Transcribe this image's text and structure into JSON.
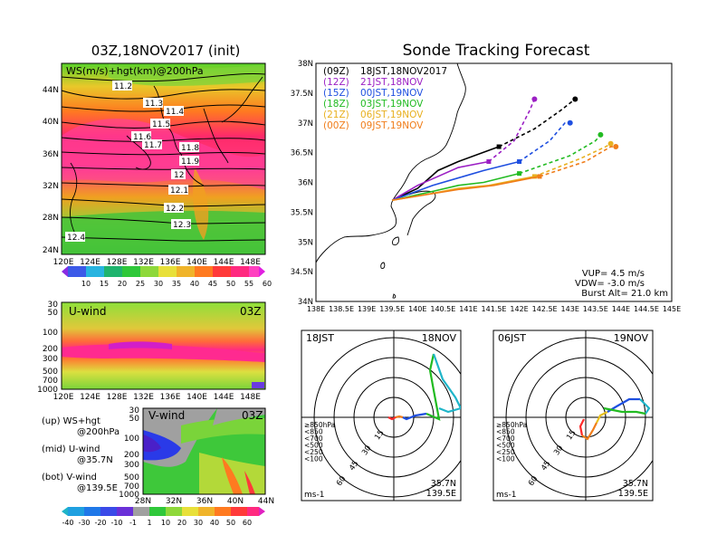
{
  "left_title": "03Z,18NOV2017 (init)",
  "right_title": "Sonde Tracking Forecast",
  "map_panel": {
    "label": "WS(m/s)+hgt(km)@200hPa",
    "xticks": [
      "120E",
      "124E",
      "128E",
      "132E",
      "136E",
      "140E",
      "144E",
      "148E"
    ],
    "yticks": [
      "24N",
      "28N",
      "32N",
      "36N",
      "40N",
      "44N"
    ],
    "contours": [
      "11.2",
      "11.3",
      "11.4",
      "11.5",
      "11.6",
      "11.7",
      "11.8",
      "11.9",
      "12",
      "12.1",
      "12.2",
      "12.3",
      "12.4"
    ],
    "colorbar": [
      "10",
      "15",
      "20",
      "25",
      "30",
      "35",
      "40",
      "45",
      "50",
      "55",
      "60"
    ]
  },
  "uwind_panel": {
    "label": "U-wind",
    "time": "03Z",
    "yticks": [
      "30",
      "50",
      "100",
      "200",
      "300",
      "500",
      "700",
      "1000"
    ],
    "xticks": [
      "120E",
      "124E",
      "128E",
      "132E",
      "136E",
      "140E",
      "144E",
      "148E"
    ]
  },
  "vwind_panel": {
    "label": "V-wind",
    "time": "03Z",
    "yticks": [
      "30",
      "50",
      "100",
      "200",
      "300",
      "500",
      "700",
      "1000"
    ],
    "xticks": [
      "28N",
      "32N",
      "36N",
      "40N",
      "44N"
    ],
    "colorbar": [
      "-40",
      "-30",
      "-20",
      "-10",
      "-1",
      "1",
      "10",
      "20",
      "30",
      "40",
      "50",
      "60"
    ]
  },
  "legend_notes": [
    {
      "head": "(up)",
      "l1": "WS+hgt",
      "l2": "@200hPa"
    },
    {
      "head": "(mid)",
      "l1": "U-wind",
      "l2": "@35.7N"
    },
    {
      "head": "(bot)",
      "l1": "V-wind",
      "l2": "@139.5E"
    }
  ],
  "track_panel": {
    "xticks": [
      "138E",
      "138.5E",
      "139E",
      "139.5E",
      "140E",
      "140.5E",
      "141E",
      "141.5E",
      "142E",
      "142.5E",
      "143E",
      "143.5E",
      "144E",
      "144.5E",
      "145E"
    ],
    "yticks": [
      "34N",
      "34.5N",
      "35N",
      "35.5N",
      "36N",
      "36.5N",
      "37N",
      "37.5N",
      "38N"
    ],
    "legend": [
      {
        "z": "(09Z)",
        "t": "18JST,18NOV2017",
        "color": "#000000"
      },
      {
        "z": "(12Z)",
        "t": "21JST,18NOV",
        "color": "#9b1fc4"
      },
      {
        "z": "(15Z)",
        "t": "00JST,19NOV",
        "color": "#1f4fe0"
      },
      {
        "z": "(18Z)",
        "t": "03JST,19NOV",
        "color": "#22bb22"
      },
      {
        "z": "(21Z)",
        "t": "06JST,19NOV",
        "color": "#e8b020"
      },
      {
        "z": "(00Z)",
        "t": "09JST,19NOV",
        "color": "#f07d1a"
      }
    ],
    "params": {
      "vup": "VUP= 4.5 m/s",
      "vdw": "VDW= -3.0 m/s",
      "burst": "Burst Alt= 21.0 km"
    }
  },
  "chart_data": {
    "type": "line",
    "title": "Sonde Tracking Forecast",
    "xlim": [
      138,
      145
    ],
    "ylim": [
      34,
      38
    ],
    "series": [
      {
        "name": "(09Z) 18JST,18NOV2017",
        "points": [
          [
            139.5,
            35.7
          ],
          [
            140.0,
            35.9
          ],
          [
            140.4,
            36.2
          ],
          [
            140.8,
            36.35
          ],
          [
            141.6,
            36.6
          ],
          [
            142.3,
            36.9
          ],
          [
            142.8,
            37.2
          ],
          [
            143.1,
            37.4
          ]
        ]
      },
      {
        "name": "(12Z) 21JST,18NOV",
        "points": [
          [
            139.5,
            35.7
          ],
          [
            140.0,
            35.95
          ],
          [
            140.4,
            36.1
          ],
          [
            140.8,
            36.25
          ],
          [
            141.4,
            36.35
          ],
          [
            141.9,
            36.7
          ],
          [
            142.2,
            37.2
          ],
          [
            142.3,
            37.4
          ]
        ]
      },
      {
        "name": "(15Z) 00JST,19NOV",
        "points": [
          [
            139.5,
            35.7
          ],
          [
            140.3,
            35.95
          ],
          [
            140.9,
            36.1
          ],
          [
            141.3,
            36.2
          ],
          [
            142.0,
            36.35
          ],
          [
            142.6,
            36.7
          ],
          [
            142.9,
            37.0
          ],
          [
            143.0,
            37.0
          ]
        ]
      },
      {
        "name": "(18Z) 03JST,19NOV",
        "points": [
          [
            139.5,
            35.7
          ],
          [
            140.3,
            35.85
          ],
          [
            140.8,
            35.95
          ],
          [
            141.3,
            36.0
          ],
          [
            142.0,
            36.15
          ],
          [
            143.0,
            36.45
          ],
          [
            143.5,
            36.7
          ],
          [
            143.6,
            36.8
          ]
        ]
      },
      {
        "name": "(21Z) 06JST,19NOV",
        "points": [
          [
            139.5,
            35.7
          ],
          [
            140.2,
            35.8
          ],
          [
            140.8,
            35.9
          ],
          [
            141.4,
            35.95
          ],
          [
            142.3,
            36.1
          ],
          [
            143.2,
            36.4
          ],
          [
            143.7,
            36.6
          ],
          [
            143.8,
            36.65
          ]
        ]
      },
      {
        "name": "(00Z) 09JST,19NOV",
        "points": [
          [
            139.5,
            35.7
          ],
          [
            140.2,
            35.8
          ],
          [
            140.8,
            35.88
          ],
          [
            141.5,
            35.95
          ],
          [
            142.4,
            36.1
          ],
          [
            143.3,
            36.35
          ],
          [
            143.8,
            36.6
          ],
          [
            143.9,
            36.6
          ]
        ]
      }
    ]
  },
  "hodo_left": {
    "t1": "18JST",
    "t2": "18NOV",
    "loc1": "35.7N",
    "loc2": "139.5E",
    "unit": "ms-1"
  },
  "hodo_right": {
    "t1": "06JST",
    "t2": "19NOV",
    "loc1": "35.7N",
    "loc2": "139.5E",
    "unit": "ms-1"
  },
  "hodo_rings": [
    "15",
    "30",
    "45",
    "60"
  ],
  "hodo_levels": [
    {
      "label": "≥850hPa",
      "color": "#ff2a2a"
    },
    {
      "label": "<850",
      "color": "#f07d1a"
    },
    {
      "label": "<700",
      "color": "#e8c020"
    },
    {
      "label": "<500",
      "color": "#22bb22"
    },
    {
      "label": "<250",
      "color": "#1fb5c9"
    },
    {
      "label": "<100",
      "color": "#1f4fe0"
    }
  ]
}
